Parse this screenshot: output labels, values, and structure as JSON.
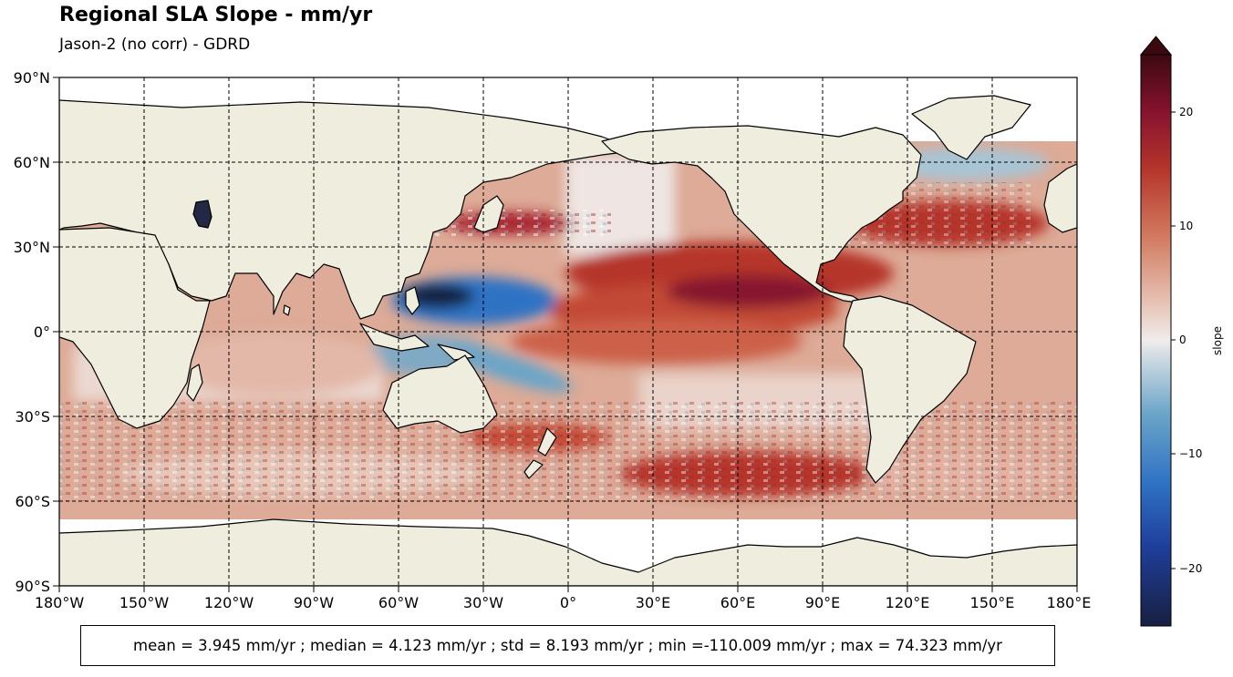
{
  "title": "Regional SLA Slope - mm/yr",
  "subtitle": "Jason-2 (no corr) - GDRD",
  "stats": "mean = 3.945 mm/yr ; median = 4.123 mm/yr ; std = 8.193 mm/yr ; min =-110.009 mm/yr ; max = 74.323 mm/yr",
  "colorbar": {
    "label": "slope",
    "ticks": [
      "20",
      "10",
      "0",
      "−10",
      "−20"
    ],
    "extend": "both",
    "colormap": "balance (blue-white-red)",
    "range": [
      -25,
      25
    ]
  },
  "x_ticks": [
    "180°W",
    "150°W",
    "120°W",
    "90°W",
    "60°W",
    "30°W",
    "0°",
    "30°E",
    "60°E",
    "90°E",
    "120°E",
    "150°E",
    "180°E"
  ],
  "y_ticks": [
    "90°N",
    "60°N",
    "30°N",
    "0°",
    "30°S",
    "60°S",
    "90°S"
  ],
  "colors": {
    "land": "#efedde",
    "ocean_no_data": "#ffffff",
    "positive_max": "#3c0911",
    "positive_high": "#9c1b2b",
    "positive_mid": "#c8553d",
    "neutral": "#f1ecec",
    "negative_mid": "#7fa9c4",
    "negative_high": "#1f5fc2",
    "negative_max": "#182040"
  },
  "projection": "Plate Carree, central longitude 180° (Pacific-centered)",
  "gridlines": "dashed black every 30°"
}
